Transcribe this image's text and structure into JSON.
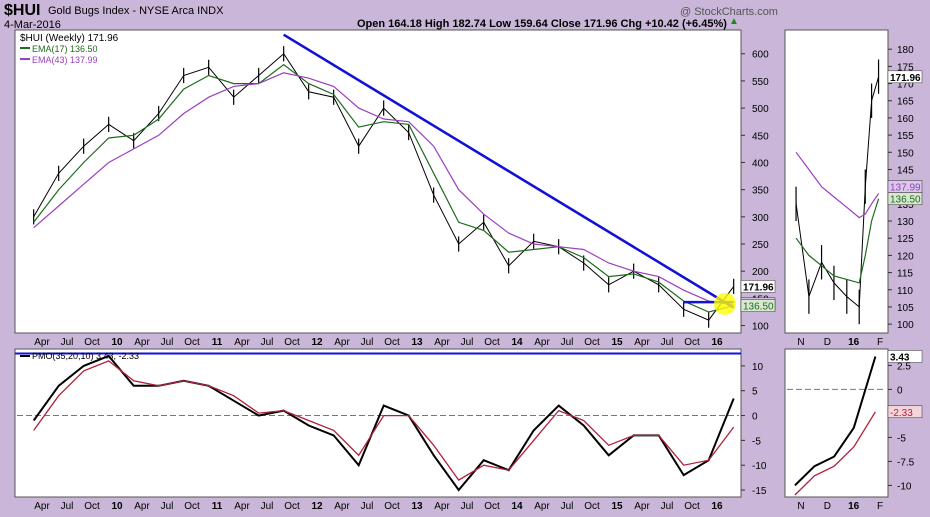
{
  "header": {
    "symbol": "$HUI",
    "name": "Gold Bugs Index - NYSE Arca INDX",
    "date": "4-Mar-2016",
    "watermark": "@ StockCharts.com",
    "quote": "Open 164.18  High 182.74  Low 159.64  Close 171.96  Chg +10.42 (+6.45%)",
    "quote_arrow": "▲"
  },
  "legend": {
    "price": "$HUI (Weekly) 171.96",
    "ema17": "EMA(17) 136.50",
    "ema43": "EMA(43) 137.99",
    "pmo": "PMO(35,20,10) 3.43, -2.33"
  },
  "colors": {
    "bg": "#c9b6d8",
    "price": "#000000",
    "ema17": "#1f6b1f",
    "ema43": "#9b3fbf",
    "pmo": "#000000",
    "pmo_signal": "#b0203a",
    "trendline": "#1010d8",
    "highlight": "#ffff00"
  },
  "chart_data": [
    {
      "type": "line",
      "panel": "main-price-weekly",
      "x": [
        "2009-03",
        "2009-06",
        "2009-09",
        "2009-12",
        "2010-03",
        "2010-06",
        "2010-09",
        "2010-12",
        "2011-03",
        "2011-06",
        "2011-09",
        "2011-12",
        "2012-03",
        "2012-06",
        "2012-09",
        "2012-12",
        "2013-03",
        "2013-06",
        "2013-09",
        "2013-12",
        "2014-03",
        "2014-06",
        "2014-09",
        "2014-12",
        "2015-03",
        "2015-06",
        "2015-09",
        "2015-12",
        "2016-03"
      ],
      "series": [
        {
          "name": "$HUI",
          "values": [
            300,
            380,
            430,
            470,
            440,
            490,
            560,
            575,
            520,
            560,
            600,
            530,
            520,
            430,
            500,
            455,
            340,
            250,
            290,
            210,
            255,
            245,
            215,
            175,
            200,
            175,
            130,
            110,
            172
          ]
        },
        {
          "name": "EMA(17)",
          "values": [
            290,
            350,
            400,
            445,
            450,
            480,
            535,
            560,
            545,
            545,
            580,
            545,
            525,
            465,
            475,
            470,
            380,
            290,
            275,
            235,
            240,
            245,
            225,
            190,
            195,
            180,
            145,
            125,
            136.5
          ]
        },
        {
          "name": "EMA(43)",
          "values": [
            280,
            320,
            360,
            400,
            425,
            450,
            490,
            520,
            540,
            545,
            565,
            555,
            540,
            500,
            480,
            475,
            430,
            350,
            305,
            270,
            250,
            245,
            240,
            215,
            200,
            190,
            165,
            145,
            138
          ]
        }
      ],
      "yticks": [
        100,
        150,
        200,
        250,
        300,
        350,
        400,
        450,
        500,
        550,
        600
      ],
      "xticks": [
        "Apr",
        "Jul",
        "Oct",
        "10",
        "Apr",
        "Jul",
        "Oct",
        "11",
        "Apr",
        "Jul",
        "Oct",
        "12",
        "Apr",
        "Jul",
        "Oct",
        "13",
        "Apr",
        "Jul",
        "Oct",
        "14",
        "Apr",
        "Jul",
        "Oct",
        "15",
        "Apr",
        "Jul",
        "Oct",
        "16"
      ],
      "ylim": [
        90,
        640
      ],
      "annotations": {
        "last_price_label": "171.96",
        "ema_label_a": "137.99",
        "ema_label_b": "136.50"
      },
      "trendlines": [
        {
          "from": [
            "2011-09",
            635
          ],
          "to": [
            "2016-03",
            133
          ]
        },
        {
          "from": [
            "2015-09",
            143
          ],
          "to": [
            "2016-03",
            143
          ]
        }
      ]
    },
    {
      "type": "line",
      "panel": "main-pmo",
      "x": [
        "2009-03",
        "2009-06",
        "2009-09",
        "2009-12",
        "2010-03",
        "2010-06",
        "2010-09",
        "2010-12",
        "2011-03",
        "2011-06",
        "2011-09",
        "2011-12",
        "2012-03",
        "2012-06",
        "2012-09",
        "2012-12",
        "2013-03",
        "2013-06",
        "2013-09",
        "2013-12",
        "2014-03",
        "2014-06",
        "2014-09",
        "2014-12",
        "2015-03",
        "2015-06",
        "2015-09",
        "2015-12",
        "2016-03"
      ],
      "series": [
        {
          "name": "PMO",
          "values": [
            -1,
            6,
            10,
            12,
            6,
            6,
            7,
            6,
            3,
            0,
            1,
            -2,
            -4,
            -10,
            2,
            0,
            -8,
            -15,
            -9,
            -11,
            -3,
            2,
            -2,
            -8,
            -4,
            -4,
            -12,
            -9,
            3.43
          ]
        },
        {
          "name": "Signal",
          "values": [
            -3,
            4,
            9,
            11,
            7,
            6,
            7,
            6,
            4,
            0.5,
            1,
            -1,
            -3,
            -8,
            0,
            0,
            -6,
            -13,
            -10,
            -11,
            -5,
            1,
            -1,
            -6,
            -4,
            -4,
            -10,
            -9,
            -2.33
          ]
        }
      ],
      "yticks": [
        -15,
        -10,
        -5,
        0,
        5,
        10
      ],
      "xticks": [
        "Apr",
        "Jul",
        "Oct",
        "10",
        "Apr",
        "Jul",
        "Oct",
        "11",
        "Apr",
        "Jul",
        "Oct",
        "12",
        "Apr",
        "Jul",
        "Oct",
        "13",
        "Apr",
        "Jul",
        "Oct",
        "14",
        "Apr",
        "Jul",
        "Oct",
        "15",
        "Apr",
        "Jul",
        "Oct",
        "16"
      ],
      "ylim": [
        -16,
        13
      ],
      "reference_lines": [
        0,
        12.5
      ]
    },
    {
      "type": "line",
      "panel": "daily-price",
      "x": [
        "2015-09-04",
        "2015-10-02",
        "2015-10-30",
        "2015-11-27",
        "2015-12-25",
        "2016-01-22",
        "2016-02-05",
        "2016-02-19",
        "2016-03-04"
      ],
      "series": [
        {
          "name": "Price",
          "values": [
            135,
            108,
            118,
            112,
            108,
            105,
            140,
            165,
            172
          ]
        },
        {
          "name": "EMA(17)",
          "values": [
            125,
            120,
            117,
            114,
            113,
            112,
            120,
            130,
            136.5
          ]
        },
        {
          "name": "EMA(43)",
          "values": [
            150,
            145,
            140,
            137,
            134,
            131,
            132,
            135,
            138
          ]
        }
      ],
      "yticks": [
        100,
        105,
        110,
        115,
        120,
        125,
        130,
        135,
        140,
        145,
        150,
        155,
        160,
        165,
        170,
        175,
        180
      ],
      "xticks": [
        "N",
        "D",
        "16",
        "F"
      ],
      "ylim": [
        98,
        185
      ],
      "annotations": {
        "last_price_label": "171.96",
        "ema_label_a": "137.99",
        "ema_label_b": "136.50"
      }
    },
    {
      "type": "line",
      "panel": "daily-pmo",
      "x": [
        "2015-11-01",
        "2015-12-01",
        "2016-01-01",
        "2016-02-01",
        "2016-03-04"
      ],
      "series": [
        {
          "name": "PMO",
          "values": [
            -10,
            -8,
            -7,
            -4,
            3.43
          ]
        },
        {
          "name": "Signal",
          "values": [
            -11,
            -9,
            -8,
            -6,
            -2.33
          ]
        }
      ],
      "yticks": [
        -10,
        -7.5,
        -5,
        -2.5,
        0,
        2.5
      ],
      "xticks": [
        "N",
        "D",
        "16",
        "F"
      ],
      "ylim": [
        -11,
        4
      ],
      "annotations": {
        "pmo_label": "3.43",
        "signal_label": "-2.33"
      }
    }
  ]
}
